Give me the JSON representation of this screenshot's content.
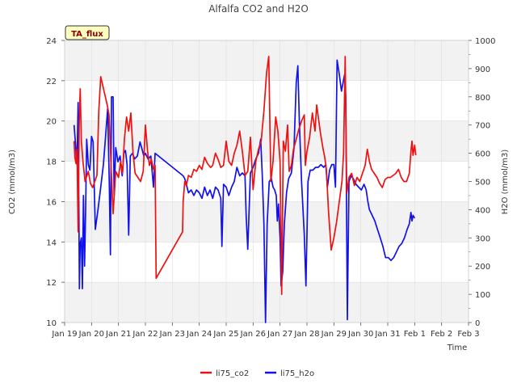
{
  "chart_data": {
    "type": "line",
    "title": "Alfalfa CO2 and H2O",
    "badge": "TA_flux",
    "xlabel": "Time",
    "ylabel_left": "CO2 (mmol/m3)",
    "ylabel_right": "H2O (mmol/m3)",
    "ylim_left": [
      10,
      24
    ],
    "ylim_right": [
      0,
      1000
    ],
    "xlim_days": [
      0,
      15
    ],
    "x_ticks": [
      "Jan 19",
      "Jan 20",
      "Jan 21",
      "Jan 22",
      "Jan 23",
      "Jan 24",
      "Jan 25",
      "Jan 26",
      "Jan 27",
      "Jan 28",
      "Jan 29",
      "Jan 30",
      "Jan 31",
      "Feb 1",
      "Feb 2",
      "Feb 3"
    ],
    "y_ticks_left": [
      10,
      12,
      14,
      16,
      18,
      20,
      22,
      24
    ],
    "y_ticks_right": [
      0,
      100,
      200,
      300,
      400,
      500,
      600,
      700,
      800,
      900,
      1000
    ],
    "grid": true,
    "legend_position": "bottom",
    "series": [
      {
        "name": "li75_co2",
        "axis": "left",
        "color": "#ee1111",
        "points": [
          [
            0.35,
            19.0
          ],
          [
            0.38,
            18.2
          ],
          [
            0.42,
            17.9
          ],
          [
            0.46,
            18.6
          ],
          [
            0.5,
            14.5
          ],
          [
            0.54,
            19.8
          ],
          [
            0.58,
            21.6
          ],
          [
            0.62,
            19.0
          ],
          [
            0.68,
            18.0
          ],
          [
            0.76,
            17.0
          ],
          [
            0.88,
            17.5
          ],
          [
            0.96,
            16.9
          ],
          [
            1.04,
            16.7
          ],
          [
            1.12,
            17.0
          ],
          [
            1.2,
            17.3
          ],
          [
            1.27,
            20.5
          ],
          [
            1.34,
            22.2
          ],
          [
            1.46,
            21.5
          ],
          [
            1.58,
            20.8
          ],
          [
            1.65,
            20.3
          ],
          [
            1.72,
            18.0
          ],
          [
            1.8,
            15.4
          ],
          [
            1.9,
            17.5
          ],
          [
            2.0,
            17.2
          ],
          [
            2.08,
            18.0
          ],
          [
            2.15,
            17.4
          ],
          [
            2.22,
            19.1
          ],
          [
            2.3,
            20.2
          ],
          [
            2.38,
            19.5
          ],
          [
            2.46,
            20.4
          ],
          [
            2.54,
            18.4
          ],
          [
            2.62,
            17.4
          ],
          [
            2.72,
            17.2
          ],
          [
            2.82,
            17.0
          ],
          [
            2.92,
            17.5
          ],
          [
            3.0,
            19.8
          ],
          [
            3.08,
            18.5
          ],
          [
            3.15,
            17.8
          ],
          [
            3.22,
            18.1
          ],
          [
            3.3,
            17.6
          ],
          [
            3.36,
            17.8
          ],
          [
            3.4,
            12.2
          ],
          [
            4.38,
            14.5
          ],
          [
            4.4,
            16.0
          ],
          [
            4.46,
            17.0
          ],
          [
            4.52,
            16.8
          ],
          [
            4.6,
            17.3
          ],
          [
            4.7,
            17.2
          ],
          [
            4.8,
            17.6
          ],
          [
            4.9,
            17.5
          ],
          [
            5.0,
            17.8
          ],
          [
            5.1,
            17.6
          ],
          [
            5.2,
            18.2
          ],
          [
            5.3,
            17.9
          ],
          [
            5.42,
            17.7
          ],
          [
            5.5,
            17.8
          ],
          [
            5.6,
            18.4
          ],
          [
            5.7,
            18.1
          ],
          [
            5.8,
            17.7
          ],
          [
            5.9,
            17.8
          ],
          [
            6.0,
            19.0
          ],
          [
            6.1,
            18.0
          ],
          [
            6.2,
            17.8
          ],
          [
            6.3,
            18.4
          ],
          [
            6.4,
            18.8
          ],
          [
            6.5,
            19.5
          ],
          [
            6.6,
            18.5
          ],
          [
            6.7,
            17.3
          ],
          [
            6.8,
            17.5
          ],
          [
            6.9,
            19.2
          ],
          [
            7.0,
            16.6
          ],
          [
            7.1,
            18.0
          ],
          [
            7.2,
            18.6
          ],
          [
            7.3,
            19.0
          ],
          [
            7.4,
            20.5
          ],
          [
            7.5,
            22.4
          ],
          [
            7.58,
            23.2
          ],
          [
            7.66,
            17.0
          ],
          [
            7.74,
            18.0
          ],
          [
            7.84,
            20.2
          ],
          [
            7.92,
            19.5
          ],
          [
            8.0,
            18.0
          ],
          [
            8.06,
            11.4
          ],
          [
            8.12,
            19.0
          ],
          [
            8.2,
            18.5
          ],
          [
            8.28,
            19.8
          ],
          [
            8.34,
            17.5
          ],
          [
            8.42,
            17.8
          ],
          [
            8.5,
            18.6
          ],
          [
            8.6,
            19.1
          ],
          [
            8.7,
            19.6
          ],
          [
            8.8,
            20.0
          ],
          [
            8.9,
            20.3
          ],
          [
            8.94,
            17.8
          ],
          [
            9.0,
            18.5
          ],
          [
            9.1,
            19.2
          ],
          [
            9.2,
            20.4
          ],
          [
            9.3,
            19.5
          ],
          [
            9.36,
            20.8
          ],
          [
            9.42,
            20.2
          ],
          [
            9.5,
            19.4
          ],
          [
            9.6,
            18.6
          ],
          [
            9.66,
            18.2
          ],
          [
            9.72,
            17.6
          ],
          [
            9.8,
            15.5
          ],
          [
            9.9,
            13.6
          ],
          [
            10.0,
            14.2
          ],
          [
            10.1,
            15.0
          ],
          [
            10.2,
            16.0
          ],
          [
            10.3,
            17.0
          ],
          [
            10.36,
            18.4
          ],
          [
            10.42,
            23.2
          ],
          [
            10.48,
            16.4
          ],
          [
            10.56,
            17.2
          ],
          [
            10.66,
            17.4
          ],
          [
            10.76,
            16.8
          ],
          [
            10.86,
            17.2
          ],
          [
            10.96,
            17.0
          ],
          [
            11.06,
            17.4
          ],
          [
            11.16,
            17.8
          ],
          [
            11.24,
            18.6
          ],
          [
            11.32,
            18.0
          ],
          [
            11.4,
            17.6
          ],
          [
            11.5,
            17.4
          ],
          [
            11.6,
            17.2
          ],
          [
            11.7,
            16.9
          ],
          [
            11.8,
            16.7
          ],
          [
            11.9,
            17.1
          ],
          [
            12.0,
            17.2
          ],
          [
            12.1,
            17.2
          ],
          [
            12.2,
            17.3
          ],
          [
            12.3,
            17.4
          ],
          [
            12.4,
            17.6
          ],
          [
            12.5,
            17.2
          ],
          [
            12.6,
            17.0
          ],
          [
            12.7,
            17.0
          ],
          [
            12.8,
            17.4
          ],
          [
            12.86,
            18.5
          ],
          [
            12.9,
            19.0
          ],
          [
            12.94,
            18.3
          ],
          [
            13.0,
            18.8
          ],
          [
            13.04,
            18.3
          ]
        ]
      },
      {
        "name": "li75_h2o",
        "axis": "right",
        "color": "#1111ee",
        "points": [
          [
            0.35,
            700
          ],
          [
            0.4,
            640
          ],
          [
            0.46,
            560
          ],
          [
            0.5,
            780
          ],
          [
            0.55,
            120
          ],
          [
            0.58,
            280
          ],
          [
            0.62,
            300
          ],
          [
            0.66,
            120
          ],
          [
            0.7,
            450
          ],
          [
            0.74,
            200
          ],
          [
            0.78,
            400
          ],
          [
            0.82,
            650
          ],
          [
            0.88,
            560
          ],
          [
            0.94,
            540
          ],
          [
            1.0,
            660
          ],
          [
            1.06,
            640
          ],
          [
            1.14,
            330
          ],
          [
            1.24,
            400
          ],
          [
            1.34,
            480
          ],
          [
            1.44,
            560
          ],
          [
            1.52,
            660
          ],
          [
            1.6,
            760
          ],
          [
            1.66,
            490
          ],
          [
            1.7,
            240
          ],
          [
            1.74,
            800
          ],
          [
            1.8,
            800
          ],
          [
            1.84,
            450
          ],
          [
            1.9,
            620
          ],
          [
            1.98,
            570
          ],
          [
            2.06,
            590
          ],
          [
            2.14,
            520
          ],
          [
            2.2,
            600
          ],
          [
            2.26,
            610
          ],
          [
            2.32,
            560
          ],
          [
            2.38,
            310
          ],
          [
            2.44,
            590
          ],
          [
            2.52,
            600
          ],
          [
            2.6,
            580
          ],
          [
            2.7,
            590
          ],
          [
            2.8,
            640
          ],
          [
            2.86,
            620
          ],
          [
            2.94,
            590
          ],
          [
            3.0,
            600
          ],
          [
            3.1,
            580
          ],
          [
            3.2,
            590
          ],
          [
            3.3,
            480
          ],
          [
            3.36,
            600
          ],
          [
            4.4,
            520
          ],
          [
            4.46,
            510
          ],
          [
            4.52,
            490
          ],
          [
            4.6,
            460
          ],
          [
            4.7,
            470
          ],
          [
            4.8,
            450
          ],
          [
            4.9,
            470
          ],
          [
            5.0,
            460
          ],
          [
            5.1,
            440
          ],
          [
            5.2,
            480
          ],
          [
            5.3,
            450
          ],
          [
            5.4,
            470
          ],
          [
            5.5,
            440
          ],
          [
            5.6,
            480
          ],
          [
            5.7,
            470
          ],
          [
            5.8,
            440
          ],
          [
            5.84,
            270
          ],
          [
            5.9,
            490
          ],
          [
            6.0,
            480
          ],
          [
            6.1,
            450
          ],
          [
            6.2,
            480
          ],
          [
            6.3,
            500
          ],
          [
            6.4,
            550
          ],
          [
            6.5,
            520
          ],
          [
            6.6,
            530
          ],
          [
            6.7,
            520
          ],
          [
            6.74,
            380
          ],
          [
            6.8,
            260
          ],
          [
            6.9,
            530
          ],
          [
            7.0,
            550
          ],
          [
            7.1,
            580
          ],
          [
            7.2,
            600
          ],
          [
            7.28,
            650
          ],
          [
            7.34,
            520
          ],
          [
            7.4,
            350
          ],
          [
            7.46,
            0
          ],
          [
            7.52,
            350
          ],
          [
            7.6,
            500
          ],
          [
            7.68,
            510
          ],
          [
            7.74,
            480
          ],
          [
            7.8,
            470
          ],
          [
            7.86,
            450
          ],
          [
            7.9,
            360
          ],
          [
            7.94,
            420
          ],
          [
            8.0,
            300
          ],
          [
            8.04,
            130
          ],
          [
            8.1,
            180
          ],
          [
            8.16,
            350
          ],
          [
            8.24,
            460
          ],
          [
            8.32,
            510
          ],
          [
            8.42,
            530
          ],
          [
            8.52,
            620
          ],
          [
            8.6,
            850
          ],
          [
            8.66,
            910
          ],
          [
            8.72,
            700
          ],
          [
            8.8,
            500
          ],
          [
            8.9,
            310
          ],
          [
            8.96,
            130
          ],
          [
            9.04,
            500
          ],
          [
            9.12,
            540
          ],
          [
            9.22,
            540
          ],
          [
            9.32,
            550
          ],
          [
            9.42,
            550
          ],
          [
            9.52,
            560
          ],
          [
            9.62,
            550
          ],
          [
            9.7,
            560
          ],
          [
            9.76,
            480
          ],
          [
            9.84,
            540
          ],
          [
            9.92,
            560
          ],
          [
            10.0,
            560
          ],
          [
            10.06,
            480
          ],
          [
            10.12,
            930
          ],
          [
            10.2,
            880
          ],
          [
            10.28,
            820
          ],
          [
            10.36,
            860
          ],
          [
            10.4,
            880
          ],
          [
            10.44,
            800
          ],
          [
            10.5,
            10
          ],
          [
            10.56,
            500
          ],
          [
            10.64,
            520
          ],
          [
            10.72,
            510
          ],
          [
            10.82,
            490
          ],
          [
            10.92,
            480
          ],
          [
            11.02,
            470
          ],
          [
            11.12,
            490
          ],
          [
            11.2,
            470
          ],
          [
            11.26,
            430
          ],
          [
            11.32,
            400
          ],
          [
            11.42,
            380
          ],
          [
            11.52,
            360
          ],
          [
            11.62,
            330
          ],
          [
            11.72,
            300
          ],
          [
            11.82,
            270
          ],
          [
            11.92,
            230
          ],
          [
            12.02,
            230
          ],
          [
            12.12,
            220
          ],
          [
            12.22,
            230
          ],
          [
            12.32,
            250
          ],
          [
            12.42,
            270
          ],
          [
            12.52,
            280
          ],
          [
            12.62,
            300
          ],
          [
            12.72,
            330
          ],
          [
            12.8,
            350
          ],
          [
            12.86,
            390
          ],
          [
            12.9,
            360
          ],
          [
            12.94,
            380
          ],
          [
            13.0,
            370
          ]
        ]
      }
    ]
  }
}
